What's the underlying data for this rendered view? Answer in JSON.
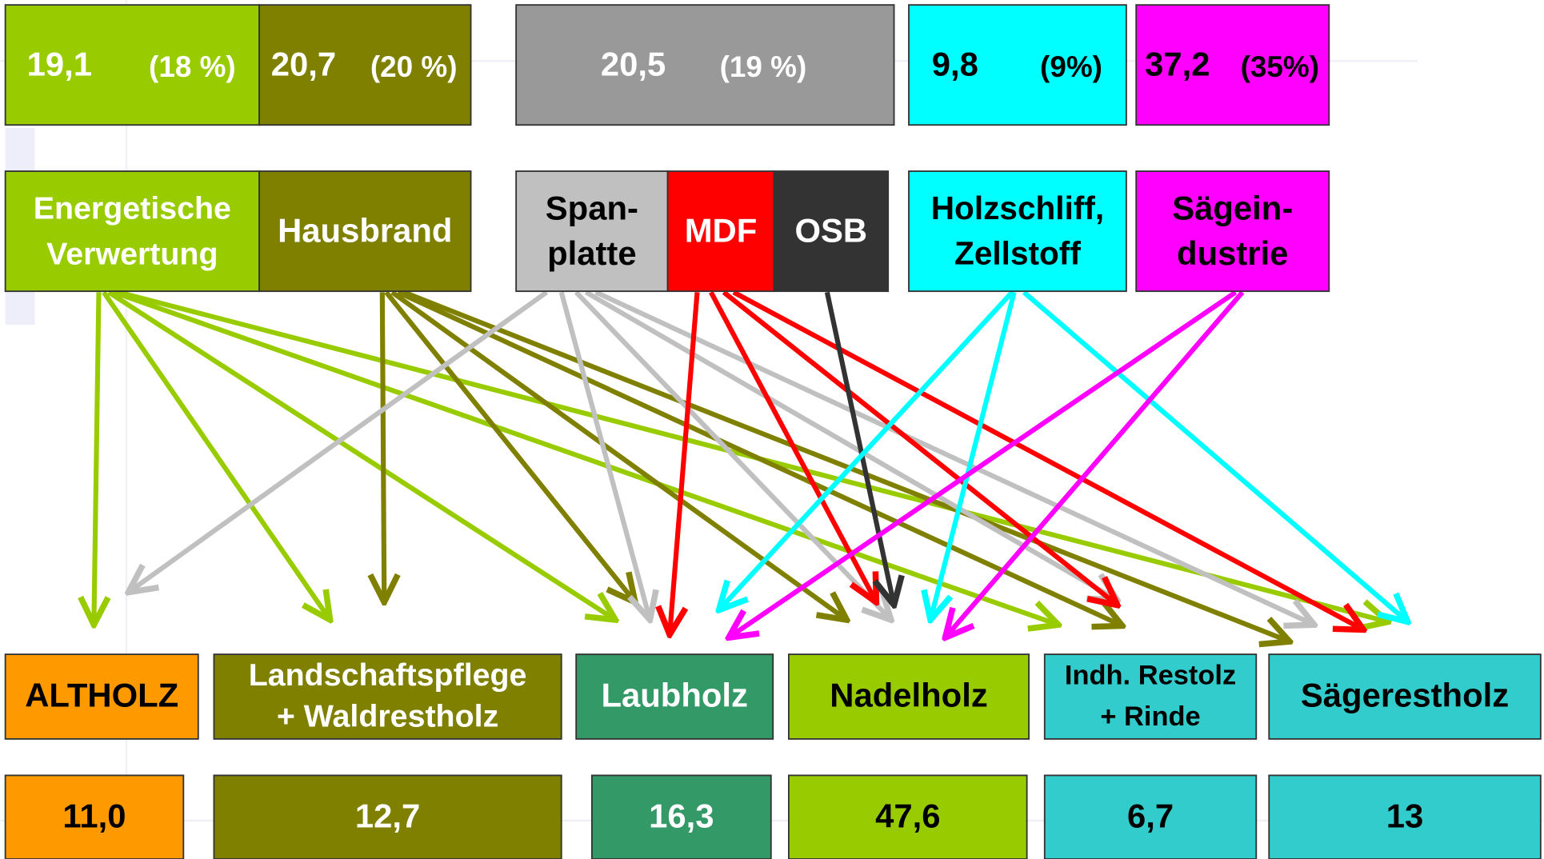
{
  "top_values": [
    {
      "value": "19,1",
      "share": "(18 %)"
    },
    {
      "value": "20,7",
      "share": "(20 %)"
    },
    {
      "value": "20,5",
      "share": "(19 %)"
    },
    {
      "value": "9,8",
      "share": "(9%)"
    },
    {
      "value": "37,2",
      "share": "(35%)"
    }
  ],
  "consumers": [
    {
      "lines": [
        "Energetische",
        "Verwertung"
      ]
    },
    {
      "lines": [
        "Hausbrand"
      ]
    },
    {
      "lines": [
        "Span-",
        "platte"
      ]
    },
    {
      "lines": [
        "MDF"
      ]
    },
    {
      "lines": [
        "OSB"
      ]
    },
    {
      "lines": [
        "Holzschliff,",
        "Zellstoff"
      ]
    },
    {
      "lines": [
        "Sägein-",
        "dustrie"
      ]
    }
  ],
  "sources": [
    {
      "lines": [
        "ALTHOLZ"
      ],
      "value": "11,0"
    },
    {
      "lines": [
        "Landschaftspflege",
        "+ Waldrestholz"
      ],
      "value": "12,7"
    },
    {
      "lines": [
        "Laubholz"
      ],
      "value": "16,3"
    },
    {
      "lines": [
        "Nadelholz"
      ],
      "value": "47,6"
    },
    {
      "lines": [
        "Indh. Restolz",
        "+ Rinde"
      ],
      "value": "6,7"
    },
    {
      "lines": [
        "Sägerestholz"
      ],
      "value": "13"
    }
  ]
}
